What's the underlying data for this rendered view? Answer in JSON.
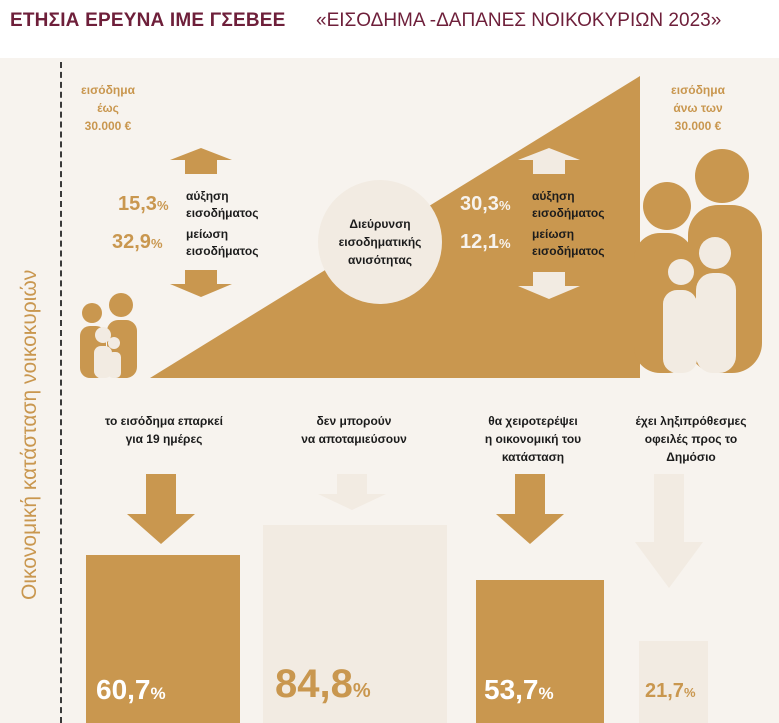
{
  "header": {
    "title": "ΕΤΗΣΙΑ ΕΡΕΥΝΑ ΙΜΕ ΓΣΕΒΕΕ",
    "subtitle": "«ΕΙΣΟΔΗΜΑ -ΔΑΠΑΝΕΣ ΝΟΙΚΟΚΥΡΙΩΝ 2023»"
  },
  "side_label": "Οικονομική κατάσταση νοικοκυριών",
  "income_groups": {
    "low": {
      "label_line1": "εισόδημα",
      "label_line2": "έως",
      "label_line3": "30.000 €",
      "increase_value": "15,3",
      "increase_label1": "αύξηση",
      "increase_label2": "εισοδήματος",
      "decrease_value": "32,9",
      "decrease_label1": "μείωση",
      "decrease_label2": "εισοδήματος"
    },
    "high": {
      "label_line1": "εισόδημα",
      "label_line2": "άνω των",
      "label_line3": "30.000 €",
      "increase_value": "30,3",
      "increase_label1": "αύξηση",
      "increase_label2": "εισοδήματος",
      "decrease_value": "12,1",
      "decrease_label1": "μείωση",
      "decrease_label2": "εισοδήματος"
    },
    "percent_sign": "%"
  },
  "center_circle": {
    "line1": "Διεύρυνση",
    "line2": "εισοδηματικής",
    "line3": "ανισότητας"
  },
  "stats": [
    {
      "line1": "το εισόδημα επαρκεί",
      "line2": "για 19 ημέρες",
      "line3": "",
      "value": "60,7",
      "fraction": 0.607,
      "style": "dark"
    },
    {
      "line1": "δεν μπορούν",
      "line2": "να αποταμιεύσουν",
      "line3": "",
      "value": "84,8",
      "fraction": 0.848,
      "style": "light"
    },
    {
      "line1": "θα χειροτερέψει",
      "line2": "η οικονομική του",
      "line3": "κατάσταση",
      "value": "53,7",
      "fraction": 0.537,
      "style": "dark"
    },
    {
      "line1": "έχει ληξιπρόθεσμες",
      "line2": "οφειλές προς το",
      "line3": "Δημόσιο",
      "value": "21,7",
      "fraction": 0.217,
      "style": "light"
    }
  ],
  "colors": {
    "gold": "#c9974f",
    "cream": "#f2ebe2",
    "maroon": "#6e1f3a",
    "panel": "#f7f3ee"
  },
  "icons": [
    "up-arrow-icon",
    "down-arrow-icon",
    "family-small-icon",
    "family-large-icon"
  ]
}
